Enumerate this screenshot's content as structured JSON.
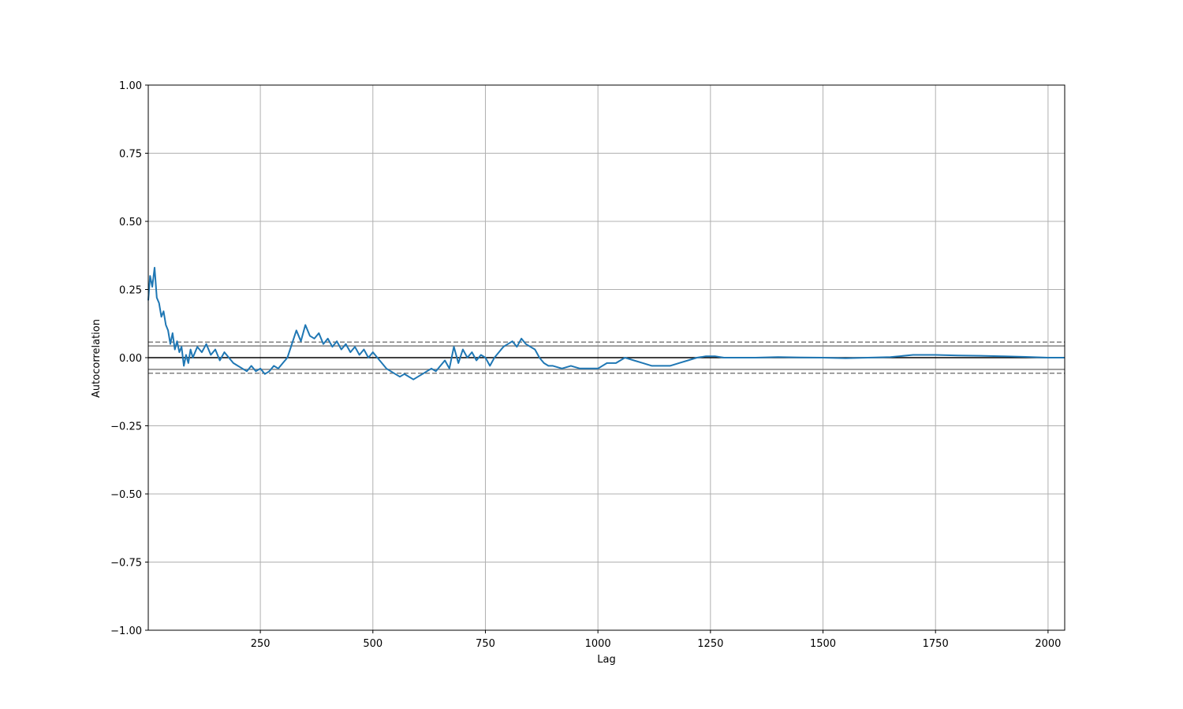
{
  "chart_data": {
    "type": "line",
    "title": "",
    "xlabel": "Lag",
    "ylabel": "Autocorrelation",
    "xlim": [
      1,
      2037
    ],
    "ylim": [
      -1.0,
      1.0
    ],
    "grid": true,
    "xticks": [
      {
        "value": 250,
        "label": "250"
      },
      {
        "value": 500,
        "label": "500"
      },
      {
        "value": 750,
        "label": "750"
      },
      {
        "value": 1000,
        "label": "1000"
      },
      {
        "value": 1250,
        "label": "1250"
      },
      {
        "value": 1500,
        "label": "1500"
      },
      {
        "value": 1750,
        "label": "1750"
      },
      {
        "value": 2000,
        "label": "2000"
      }
    ],
    "yticks": [
      {
        "value": 1.0,
        "label": "1.00"
      },
      {
        "value": 0.75,
        "label": "0.75"
      },
      {
        "value": 0.5,
        "label": "0.50"
      },
      {
        "value": 0.25,
        "label": "0.25"
      },
      {
        "value": 0.0,
        "label": "0.00"
      },
      {
        "value": -0.25,
        "label": "−0.25"
      },
      {
        "value": -0.5,
        "label": "−0.50"
      },
      {
        "value": -0.75,
        "label": "−0.75"
      },
      {
        "value": -1.0,
        "label": "−1.00"
      }
    ],
    "reference_lines": [
      {
        "name": "zero-line",
        "value": 0.0,
        "style": "solid",
        "color": "#000000"
      },
      {
        "name": "conf-95-upper",
        "value": 0.043,
        "style": "solid",
        "color": "#808080"
      },
      {
        "name": "conf-95-lower",
        "value": -0.043,
        "style": "solid",
        "color": "#808080"
      },
      {
        "name": "conf-99-upper",
        "value": 0.057,
        "style": "dashed",
        "color": "#808080"
      },
      {
        "name": "conf-99-lower",
        "value": -0.057,
        "style": "dashed",
        "color": "#808080"
      }
    ],
    "series": [
      {
        "name": "autocorrelation",
        "color": "#1f77b4",
        "x": [
          1,
          5,
          10,
          15,
          20,
          25,
          30,
          35,
          40,
          45,
          50,
          55,
          60,
          65,
          70,
          75,
          80,
          85,
          90,
          95,
          100,
          110,
          120,
          130,
          140,
          150,
          160,
          170,
          180,
          190,
          200,
          210,
          220,
          230,
          240,
          250,
          260,
          270,
          280,
          290,
          300,
          310,
          320,
          330,
          340,
          350,
          360,
          370,
          380,
          390,
          400,
          410,
          420,
          430,
          440,
          450,
          460,
          470,
          480,
          490,
          500,
          510,
          520,
          530,
          540,
          550,
          560,
          570,
          580,
          590,
          600,
          610,
          620,
          630,
          640,
          650,
          660,
          670,
          680,
          690,
          700,
          710,
          720,
          730,
          740,
          750,
          760,
          770,
          780,
          790,
          800,
          810,
          820,
          830,
          840,
          850,
          860,
          870,
          880,
          890,
          900,
          920,
          940,
          960,
          980,
          1000,
          1020,
          1040,
          1060,
          1080,
          1100,
          1120,
          1140,
          1160,
          1180,
          1200,
          1220,
          1240,
          1260,
          1280,
          1300,
          1350,
          1400,
          1450,
          1500,
          1550,
          1600,
          1650,
          1700,
          1750,
          1800,
          1850,
          1900,
          1950,
          2000,
          2037
        ],
        "values": [
          0.21,
          0.3,
          0.26,
          0.33,
          0.22,
          0.2,
          0.15,
          0.17,
          0.12,
          0.1,
          0.05,
          0.09,
          0.03,
          0.06,
          0.02,
          0.04,
          -0.03,
          0.01,
          -0.02,
          0.03,
          0.0,
          0.04,
          0.02,
          0.05,
          0.01,
          0.03,
          -0.01,
          0.02,
          0.0,
          -0.02,
          -0.03,
          -0.04,
          -0.05,
          -0.03,
          -0.05,
          -0.04,
          -0.06,
          -0.05,
          -0.03,
          -0.04,
          -0.02,
          0.0,
          0.05,
          0.1,
          0.06,
          0.12,
          0.08,
          0.07,
          0.09,
          0.05,
          0.07,
          0.04,
          0.06,
          0.03,
          0.05,
          0.02,
          0.04,
          0.01,
          0.03,
          0.0,
          0.02,
          0.0,
          -0.02,
          -0.04,
          -0.05,
          -0.06,
          -0.07,
          -0.06,
          -0.07,
          -0.08,
          -0.07,
          -0.06,
          -0.05,
          -0.04,
          -0.05,
          -0.03,
          -0.01,
          -0.04,
          0.04,
          -0.02,
          0.03,
          0.0,
          0.02,
          -0.01,
          0.01,
          0.0,
          -0.03,
          0.0,
          0.02,
          0.04,
          0.05,
          0.06,
          0.04,
          0.07,
          0.05,
          0.04,
          0.03,
          0.0,
          -0.02,
          -0.03,
          -0.03,
          -0.04,
          -0.03,
          -0.04,
          -0.04,
          -0.04,
          -0.02,
          -0.02,
          0.0,
          -0.01,
          -0.02,
          -0.03,
          -0.03,
          -0.03,
          -0.02,
          -0.01,
          0.0,
          0.005,
          0.005,
          0.0,
          0.0,
          0.0,
          0.002,
          0.001,
          0.0,
          -0.002,
          0.0,
          0.002,
          0.01,
          0.01,
          0.008,
          0.007,
          0.005,
          0.003,
          0.0,
          0.0
        ]
      }
    ]
  }
}
